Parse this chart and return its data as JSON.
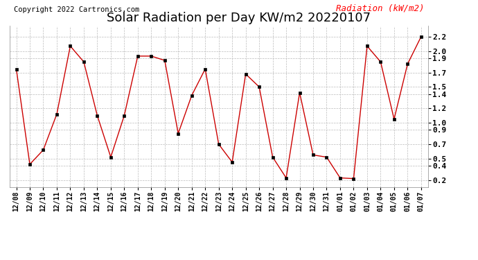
{
  "title": "Solar Radiation per Day KW/m2 20220107",
  "copyright": "Copyright 2022 Cartronics.com",
  "legend_label": "Radiation (kW/m2)",
  "dates": [
    "12/08",
    "12/09",
    "12/10",
    "12/11",
    "12/12",
    "12/13",
    "12/14",
    "12/15",
    "12/16",
    "12/17",
    "12/18",
    "12/19",
    "12/20",
    "12/21",
    "12/22",
    "12/23",
    "12/24",
    "12/25",
    "12/26",
    "12/27",
    "12/28",
    "12/29",
    "12/30",
    "12/31",
    "01/01",
    "01/02",
    "01/03",
    "01/04",
    "01/05",
    "01/06",
    "01/07"
  ],
  "values": [
    1.75,
    0.42,
    0.62,
    1.12,
    2.07,
    1.85,
    1.1,
    0.52,
    1.1,
    1.93,
    1.93,
    1.87,
    0.85,
    1.38,
    1.75,
    0.7,
    0.45,
    1.68,
    1.5,
    0.52,
    0.23,
    1.42,
    0.55,
    0.52,
    0.23,
    0.22,
    2.07,
    1.85,
    1.05,
    1.82,
    2.2
  ],
  "line_color": "#cc0000",
  "marker_color": "#000000",
  "bg_color": "#ffffff",
  "grid_color": "#bbbbbb",
  "title_color": "#000000",
  "copyright_color": "#000000",
  "legend_color": "#ff0000",
  "ylim": [
    0.1,
    2.35
  ],
  "yticks": [
    0.2,
    0.4,
    0.5,
    0.7,
    0.9,
    1.0,
    1.2,
    1.4,
    1.5,
    1.7,
    1.9,
    2.0,
    2.2
  ],
  "title_fontsize": 13,
  "copyright_fontsize": 7.5,
  "legend_fontsize": 9,
  "tick_fontsize": 7,
  "ytick_fontsize": 8
}
